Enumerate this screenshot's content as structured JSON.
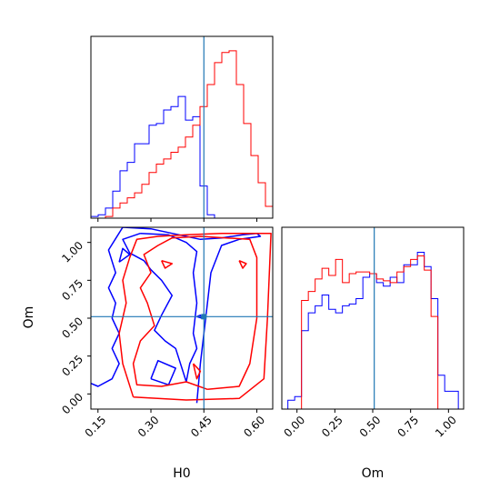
{
  "chart_data": [
    {
      "type": "histogram",
      "panel": "H0 marginal",
      "xlim": [
        0.13,
        0.645
      ],
      "truth": 0.45,
      "bin_edges": [
        0.13,
        0.1506,
        0.1712,
        0.1918,
        0.2124,
        0.233,
        0.2536,
        0.2742,
        0.2948,
        0.3154,
        0.336,
        0.3566,
        0.3772,
        0.3978,
        0.4184,
        0.439,
        0.4596,
        0.4802,
        0.5008,
        0.5214,
        0.542,
        0.5626,
        0.5832,
        0.6038,
        0.6244,
        0.645
      ],
      "series": [
        {
          "color": "#0000ff",
          "values": [
            0.01,
            0.02,
            0.06,
            0.16,
            0.28,
            0.33,
            0.44,
            0.44,
            0.55,
            0.56,
            0.64,
            0.66,
            0.72,
            0.58,
            0.6,
            0.19,
            0.02,
            0,
            0,
            0,
            0,
            0,
            0,
            0,
            0
          ]
        },
        {
          "color": "#ff0000",
          "values": [
            0,
            0,
            0.01,
            0.06,
            0.09,
            0.12,
            0.15,
            0.2,
            0.27,
            0.32,
            0.35,
            0.39,
            0.42,
            0.48,
            0.55,
            0.66,
            0.79,
            0.92,
            0.98,
            0.99,
            0.79,
            0.56,
            0.37,
            0.21,
            0.07
          ]
        }
      ]
    },
    {
      "type": "contour",
      "panel": "H0 vs Om",
      "xlabel": "H0",
      "ylabel": "Om",
      "xlim": [
        0.13,
        0.645
      ],
      "ylim": [
        -0.1,
        1.1
      ],
      "xticks": [
        "0.15",
        "0.30",
        "0.45",
        "0.60"
      ],
      "xtick_values": [
        0.15,
        0.3,
        0.45,
        0.6
      ],
      "yticks": [
        "0.00",
        "0.25",
        "0.50",
        "0.75",
        "1.00"
      ],
      "ytick_values": [
        0.0,
        0.25,
        0.5,
        0.75,
        1.0
      ],
      "truth": {
        "x": 0.45,
        "y": 0.51
      },
      "series": [
        {
          "color": "#0000ff",
          "contours": [
            [
              [
                0.13,
                0.07
              ],
              [
                0.15,
                0.05
              ],
              [
                0.19,
                0.1
              ],
              [
                0.21,
                0.2
              ],
              [
                0.19,
                0.3
              ],
              [
                0.21,
                0.4
              ],
              [
                0.19,
                0.5
              ],
              [
                0.2,
                0.6
              ],
              [
                0.18,
                0.7
              ],
              [
                0.2,
                0.8
              ],
              [
                0.18,
                0.95
              ],
              [
                0.22,
                1.1
              ],
              [
                0.3,
                1.09
              ],
              [
                0.36,
                1.06
              ],
              [
                0.4,
                1.04
              ],
              [
                0.44,
                1.02
              ],
              [
                0.5,
                1.03
              ],
              [
                0.56,
                1.05
              ],
              [
                0.6,
                1.06
              ],
              [
                0.61,
                1.04
              ],
              [
                0.55,
                1.02
              ],
              [
                0.5,
                0.98
              ],
              [
                0.47,
                0.8
              ],
              [
                0.46,
                0.6
              ],
              [
                0.45,
                0.4
              ],
              [
                0.44,
                0.2
              ],
              [
                0.43,
                -0.06
              ]
            ],
            [
              [
                0.27,
                1.06
              ],
              [
                0.35,
                1.05
              ],
              [
                0.4,
                1.0
              ],
              [
                0.43,
                0.94
              ],
              [
                0.42,
                0.8
              ],
              [
                0.43,
                0.6
              ],
              [
                0.42,
                0.4
              ],
              [
                0.43,
                0.3
              ],
              [
                0.41,
                0.2
              ],
              [
                0.4,
                0.08
              ],
              [
                0.37,
                0.3
              ],
              [
                0.34,
                0.35
              ],
              [
                0.31,
                0.42
              ],
              [
                0.33,
                0.52
              ],
              [
                0.36,
                0.65
              ],
              [
                0.33,
                0.75
              ],
              [
                0.3,
                0.82
              ],
              [
                0.28,
                0.88
              ],
              [
                0.24,
                0.93
              ],
              [
                0.22,
                1.02
              ],
              [
                0.27,
                1.06
              ]
            ],
            [
              [
                0.3,
                0.1
              ],
              [
                0.35,
                0.06
              ],
              [
                0.37,
                0.17
              ],
              [
                0.32,
                0.22
              ],
              [
                0.3,
                0.1
              ]
            ],
            [
              [
                0.43,
                0.51
              ],
              [
                0.44,
                0.52
              ],
              [
                0.445,
                0.5
              ],
              [
                0.43,
                0.51
              ]
            ],
            [
              [
                0.21,
                0.87
              ],
              [
                0.24,
                0.92
              ],
              [
                0.22,
                0.96
              ],
              [
                0.21,
                0.87
              ]
            ]
          ]
        },
        {
          "color": "#ff0000",
          "contours": [
            [
              [
                0.25,
                -0.02
              ],
              [
                0.4,
                -0.04
              ],
              [
                0.55,
                -0.03
              ],
              [
                0.62,
                0.1
              ],
              [
                0.63,
                0.5
              ],
              [
                0.64,
                1.06
              ],
              [
                0.5,
                1.06
              ],
              [
                0.4,
                1.05
              ],
              [
                0.32,
                1.04
              ],
              [
                0.26,
                1.02
              ],
              [
                0.24,
                0.9
              ],
              [
                0.22,
                0.75
              ],
              [
                0.23,
                0.6
              ],
              [
                0.21,
                0.4
              ],
              [
                0.22,
                0.2
              ],
              [
                0.25,
                -0.02
              ]
            ],
            [
              [
                0.46,
                0.03
              ],
              [
                0.55,
                0.05
              ],
              [
                0.58,
                0.2
              ],
              [
                0.6,
                0.5
              ],
              [
                0.6,
                0.9
              ],
              [
                0.58,
                1.02
              ],
              [
                0.44,
                1.04
              ],
              [
                0.36,
                1.03
              ],
              [
                0.32,
                0.98
              ],
              [
                0.28,
                0.92
              ],
              [
                0.3,
                0.8
              ],
              [
                0.27,
                0.7
              ],
              [
                0.29,
                0.6
              ],
              [
                0.31,
                0.45
              ],
              [
                0.27,
                0.35
              ],
              [
                0.25,
                0.2
              ],
              [
                0.26,
                0.06
              ],
              [
                0.33,
                0.05
              ],
              [
                0.4,
                0.08
              ],
              [
                0.46,
                0.03
              ]
            ],
            [
              [
                0.33,
                0.88
              ],
              [
                0.36,
                0.86
              ],
              [
                0.34,
                0.83
              ],
              [
                0.33,
                0.88
              ]
            ],
            [
              [
                0.55,
                0.88
              ],
              [
                0.57,
                0.86
              ],
              [
                0.56,
                0.83
              ],
              [
                0.55,
                0.88
              ]
            ],
            [
              [
                0.42,
                0.2
              ],
              [
                0.44,
                0.15
              ],
              [
                0.43,
                0.1
              ],
              [
                0.42,
                0.2
              ]
            ]
          ]
        }
      ]
    },
    {
      "type": "histogram",
      "panel": "Om marginal",
      "xlabel": "Om",
      "xlim": [
        -0.1,
        1.1
      ],
      "xticks": [
        "0.00",
        "0.25",
        "0.50",
        "0.75",
        "1.00"
      ],
      "xtick_values": [
        0.0,
        0.25,
        0.5,
        0.75,
        1.0
      ],
      "truth": 0.51,
      "bin_edges": [
        -0.06,
        -0.015,
        0.03,
        0.075,
        0.12,
        0.165,
        0.21,
        0.255,
        0.3,
        0.345,
        0.39,
        0.435,
        0.48,
        0.525,
        0.57,
        0.615,
        0.66,
        0.705,
        0.75,
        0.795,
        0.84,
        0.885,
        0.93,
        0.975,
        1.02,
        1.065
      ],
      "series": [
        {
          "color": "#0000ff",
          "values": [
            0.05,
            0.07,
            0.44,
            0.54,
            0.58,
            0.64,
            0.56,
            0.54,
            0.58,
            0.59,
            0.62,
            0.74,
            0.76,
            0.71,
            0.69,
            0.74,
            0.71,
            0.81,
            0.81,
            0.88,
            0.8,
            0.62,
            0.19,
            0.1,
            0.1
          ]
        },
        {
          "color": "#ff0000",
          "values": [
            0,
            0,
            0.61,
            0.66,
            0.73,
            0.79,
            0.75,
            0.84,
            0.71,
            0.76,
            0.77,
            0.77,
            0.76,
            0.73,
            0.72,
            0.71,
            0.77,
            0.8,
            0.84,
            0.86,
            0.78,
            0.52,
            0,
            0,
            0
          ]
        }
      ]
    }
  ],
  "truth_line_color": "#1f77b4"
}
